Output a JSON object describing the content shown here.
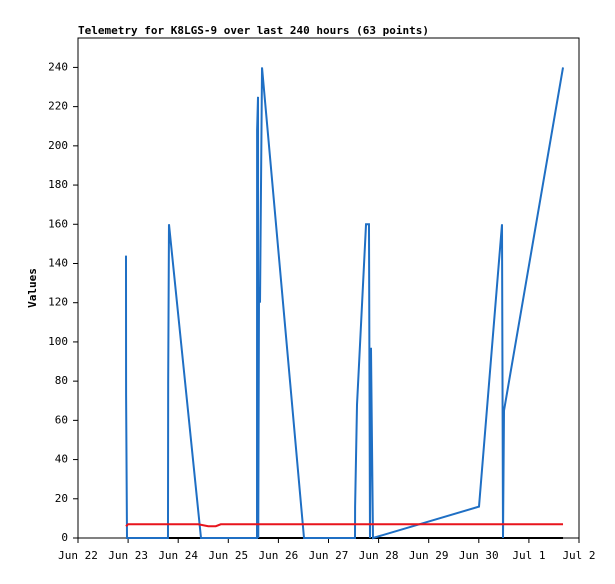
{
  "chart_data": {
    "type": "line",
    "title": "Telemetry for K8LGS-9 over last 240 hours (63 points)",
    "y_label": "Values",
    "xlim": [
      0,
      10
    ],
    "xticks": [
      {
        "value": 0,
        "label": "Jun 22"
      },
      {
        "value": 1,
        "label": "Jun 23"
      },
      {
        "value": 2,
        "label": "Jun 24"
      },
      {
        "value": 3,
        "label": "Jun 25"
      },
      {
        "value": 4,
        "label": "Jun 26"
      },
      {
        "value": 5,
        "label": "Jun 27"
      },
      {
        "value": 6,
        "label": "Jun 28"
      },
      {
        "value": 7,
        "label": "Jun 29"
      },
      {
        "value": 8,
        "label": "Jun 30"
      },
      {
        "value": 9,
        "label": "Jul 1"
      },
      {
        "value": 10,
        "label": "Jul 2"
      }
    ],
    "ylim": [
      0,
      255
    ],
    "yticks": [
      0,
      20,
      40,
      60,
      80,
      100,
      120,
      140,
      160,
      180,
      200,
      220,
      240
    ],
    "series": [
      {
        "color": "#000000",
        "x": [
          0.958,
          9.681
        ],
        "values": [
          0,
          0
        ]
      },
      {
        "color": "#1f6fc4",
        "x": [
          0.958,
          0.96,
          0.978,
          1.796,
          1.8,
          1.816,
          2.455,
          3.573,
          3.575,
          3.593,
          3.598,
          3.613,
          3.633,
          3.673,
          4.511,
          5.529,
          5.531,
          5.569,
          5.749,
          5.808,
          5.828,
          5.848,
          5.868,
          5.888,
          8.004,
          8.463,
          8.483,
          8.503,
          9.681
        ],
        "values": [
          144,
          73,
          0,
          0,
          80,
          160,
          0,
          0,
          208,
          225,
          0,
          128,
          120,
          240,
          0,
          0,
          16,
          68,
          160,
          160,
          0,
          97,
          48,
          0,
          16,
          160,
          0,
          65,
          240
        ]
      },
      {
        "color": "#e8141c",
        "x": [
          0.958,
          1.0,
          2.4,
          2.6,
          2.75,
          2.85,
          9.681
        ],
        "values": [
          6,
          7,
          7,
          6,
          6,
          7,
          7
        ]
      }
    ]
  }
}
